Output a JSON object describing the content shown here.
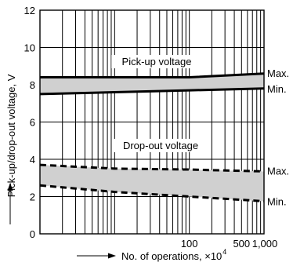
{
  "chart_data": {
    "type": "area",
    "title": "",
    "xlabel": "No. of operations, ×10",
    "xlabel_exp": "4",
    "ylabel": "Pick-up/drop-out voltage, V",
    "x_scale": "log",
    "xlim": [
      1,
      1000
    ],
    "ylim": [
      0,
      12
    ],
    "grid": true,
    "y_ticks": [
      0,
      2,
      4,
      6,
      8,
      10,
      12
    ],
    "x_tick_labels": [
      {
        "x": 100,
        "label": "100"
      },
      {
        "x": 500,
        "label": "500"
      },
      {
        "x": 1000,
        "label": "1,000"
      }
    ],
    "bands": [
      {
        "name": "Pick-up voltage",
        "line_style": "solid",
        "fill": "#d0d0d0",
        "max": {
          "label": "Max.",
          "x": [
            1,
            10,
            100,
            1000
          ],
          "y": [
            8.4,
            8.4,
            8.4,
            8.6
          ]
        },
        "min": {
          "label": "Min.",
          "x": [
            1,
            10,
            100,
            1000
          ],
          "y": [
            7.5,
            7.6,
            7.7,
            7.8
          ]
        }
      },
      {
        "name": "Drop-out voltage",
        "line_style": "dashed",
        "fill": "#d0d0d0",
        "max": {
          "label": "Max.",
          "x": [
            1,
            10,
            100,
            1000
          ],
          "y": [
            3.7,
            3.5,
            3.45,
            3.35
          ]
        },
        "min": {
          "label": "Min.",
          "x": [
            1,
            10,
            100,
            1000
          ],
          "y": [
            2.6,
            2.25,
            2.0,
            1.75
          ]
        }
      }
    ]
  }
}
